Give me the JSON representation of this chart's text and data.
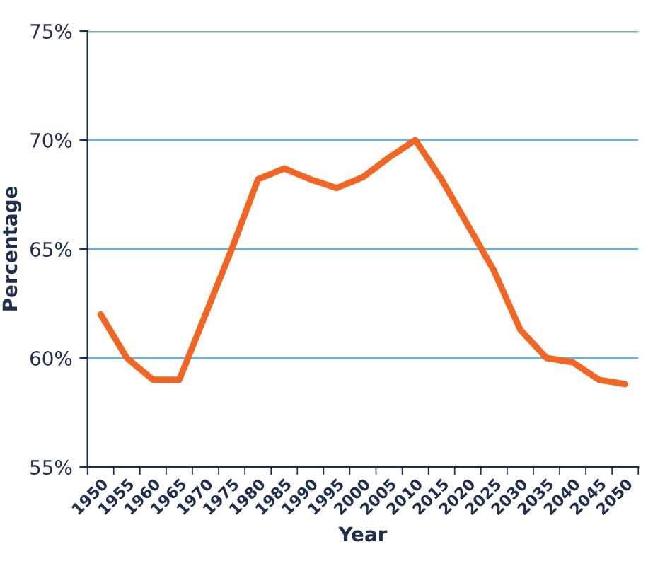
{
  "chart_data": {
    "type": "line",
    "xlabel": "Year",
    "ylabel": "Percentage",
    "categories": [
      "1950",
      "1955",
      "1960",
      "1965",
      "1970",
      "1975",
      "1980",
      "1985",
      "1990",
      "1995",
      "2000",
      "2005",
      "2010",
      "2015",
      "2020",
      "2025",
      "2030",
      "2035",
      "2040",
      "2045",
      "2050"
    ],
    "series": [
      {
        "color": "#f26522",
        "values": [
          62.0,
          60.0,
          59.0,
          59.0,
          62.0,
          65.0,
          68.2,
          68.7,
          68.2,
          67.8,
          68.3,
          69.2,
          70.0,
          68.2,
          66.1,
          64.0,
          61.3,
          60.0,
          59.8,
          59.0,
          58.8
        ]
      }
    ],
    "ylim": [
      55,
      75
    ],
    "yticks": [
      {
        "value": 55,
        "label": "55%"
      },
      {
        "value": 60,
        "label": "60%"
      },
      {
        "value": 65,
        "label": "65%"
      },
      {
        "value": 70,
        "label": "70%"
      },
      {
        "value": 75,
        "label": "75%"
      }
    ],
    "grid": "y",
    "marker": "none",
    "line_style": "solid",
    "legend": false
  }
}
